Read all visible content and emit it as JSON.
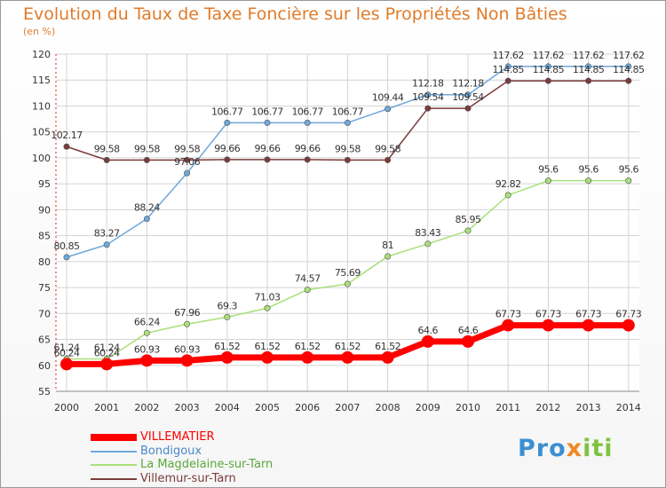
{
  "chart_data": {
    "type": "line",
    "title": "Evolution du Taux de Taxe Foncière sur les Propriétés Non Bâties",
    "unit_label": "(en %)",
    "x": [
      "2000",
      "2001",
      "2002",
      "2003",
      "2004",
      "2005",
      "2006",
      "2007",
      "2008",
      "2009",
      "2010",
      "2011",
      "2012",
      "2013",
      "2014"
    ],
    "ylim": [
      55,
      120
    ],
    "yticks": [
      55,
      60,
      65,
      70,
      75,
      80,
      85,
      90,
      95,
      100,
      105,
      110,
      115,
      120
    ],
    "grid": true,
    "legend_position": "bottom-left",
    "series": [
      {
        "name": "VILLEMATIER",
        "color": "#ff0000",
        "values": [
          60.24,
          60.24,
          60.93,
          60.93,
          61.52,
          61.52,
          61.52,
          61.52,
          61.52,
          64.6,
          64.6,
          67.73,
          67.73,
          67.73,
          67.73
        ],
        "labels": [
          "60.24",
          "60.24",
          "60.93",
          "60.93",
          "61.52",
          "61.52",
          "61.52",
          "61.52",
          "61.52",
          "64.6",
          "64.6",
          "67.73",
          "67.73",
          "67.73",
          "67.73"
        ]
      },
      {
        "name": "Bondigoux",
        "color": "#6fa8dc",
        "values": [
          80.85,
          83.27,
          88.24,
          97.06,
          106.77,
          106.77,
          106.77,
          106.77,
          109.44,
          112.18,
          112.18,
          117.62,
          117.62,
          117.62,
          117.62
        ],
        "labels": [
          "80.85",
          "83.27",
          "88.24",
          "97.06",
          "106.77",
          "106.77",
          "106.77",
          "106.77",
          "109.44",
          "112.18",
          "112.18",
          "117.62",
          "117.62",
          "117.62",
          "117.62"
        ]
      },
      {
        "name": "La Magdelaine-sur-Tarn",
        "color": "#a8e07a",
        "values": [
          61.24,
          61.24,
          66.24,
          67.96,
          69.3,
          71.03,
          74.57,
          75.69,
          81,
          83.43,
          85.95,
          92.82,
          95.6,
          95.6,
          95.6
        ],
        "labels": [
          "61.24",
          "61.24",
          "66.24",
          "67.96",
          "69.3",
          "71.03",
          "74.57",
          "75.69",
          "81",
          "83.43",
          "85.95",
          "92.82",
          "95.6",
          "95.6",
          "95.6"
        ]
      },
      {
        "name": "Villemur-sur-Tarn",
        "color": "#7b3b3b",
        "values": [
          102.17,
          99.58,
          99.58,
          99.58,
          99.66,
          99.66,
          99.66,
          99.58,
          99.58,
          109.54,
          109.54,
          114.85,
          114.85,
          114.85,
          114.85
        ],
        "labels": [
          "102.17",
          "99.58",
          "99.58",
          "99.58",
          "99.66",
          "99.66",
          "99.66",
          "99.58",
          "99.58",
          "109.54",
          "109.54",
          "114.85",
          "114.85",
          "114.85",
          "114.85"
        ]
      }
    ]
  },
  "logo": {
    "part1": "Pro",
    "part2": "x",
    "part3": "iti"
  }
}
